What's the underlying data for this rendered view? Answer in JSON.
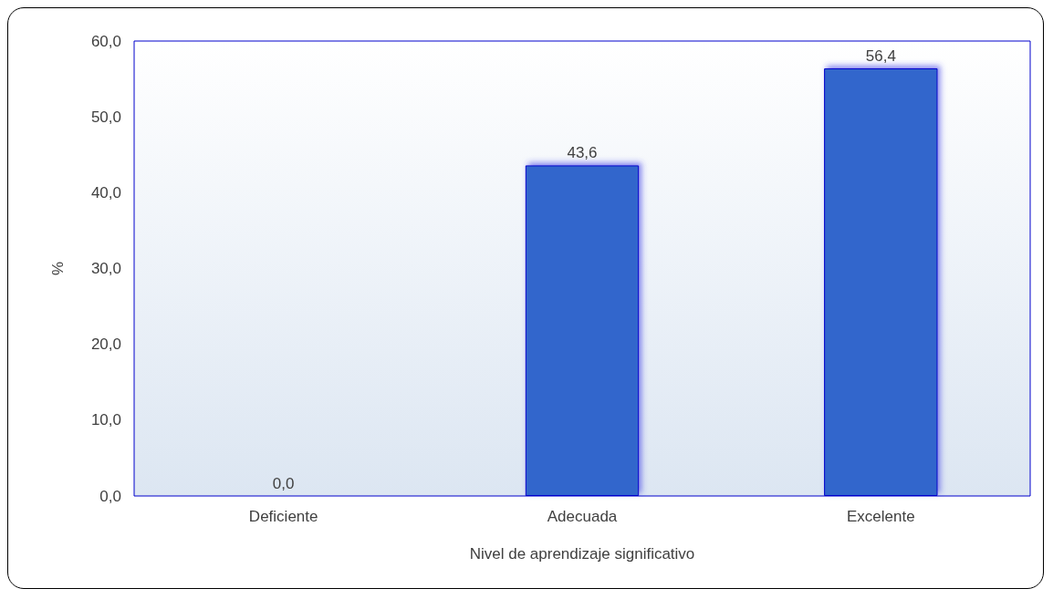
{
  "chart_data": {
    "type": "bar",
    "xlabel": "Nivel de aprendizaje significativo",
    "ylabel": "%",
    "categories": [
      "Deficiente",
      "Adecuada",
      "Excelente"
    ],
    "values": [
      0.0,
      43.6,
      56.4
    ],
    "color": "#3366cc",
    "value_labels": [
      "0,0",
      "43,6",
      "56,4"
    ],
    "ylim": [
      0,
      60
    ],
    "yticks": [
      {
        "value": 0,
        "label": "0,0"
      },
      {
        "value": 10,
        "label": "10,0"
      },
      {
        "value": 20,
        "label": "20,0"
      },
      {
        "value": 30,
        "label": "30,0"
      },
      {
        "value": 40,
        "label": "40,0"
      },
      {
        "value": 50,
        "label": "50,0"
      },
      {
        "value": 60,
        "label": "60,0"
      }
    ],
    "grid": false
  }
}
